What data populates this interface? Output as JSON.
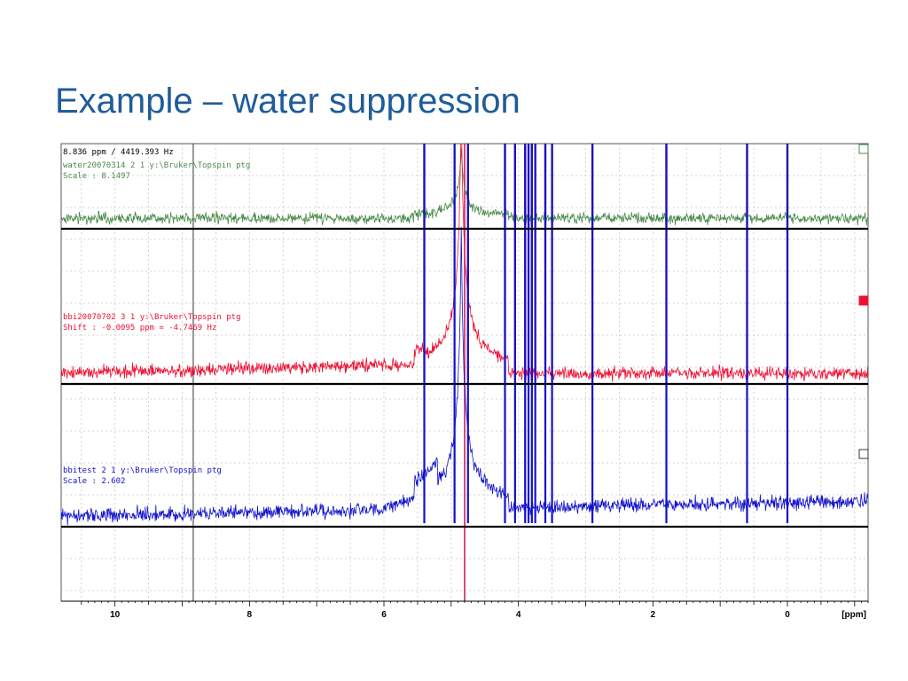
{
  "slide": {
    "title": "Example – water suppression"
  },
  "colors": {
    "title": "#1f5c99",
    "green": "#4a8a4a",
    "red": "#ee1133",
    "blue": "#1111cc",
    "grid": "#c8c8c8"
  },
  "chart_data": {
    "type": "line",
    "title": "",
    "xlabel": "[ppm]",
    "ylabel": "",
    "x_reversed": true,
    "xlim": [
      10.8,
      -1.2
    ],
    "ticks": [
      {
        "value": 10,
        "label": "10"
      },
      {
        "value": 8,
        "label": "8"
      },
      {
        "value": 6,
        "label": "6"
      },
      {
        "value": 4,
        "label": "4"
      },
      {
        "value": 2,
        "label": "2"
      },
      {
        "value": 0,
        "label": "0"
      }
    ],
    "grid": true,
    "cursor": {
      "ppm": 8.836,
      "readout": "8.836 ppm / 4419.393 Hz"
    },
    "water_line_ppm": 4.8,
    "series": [
      {
        "name": "water20070314  2  1  y:\\Bruker\\Topspin  ptg",
        "color": "#4a8a4a",
        "info": "Scale : 8.1497",
        "peaks_ppm": [
          5.4,
          4.95,
          4.2,
          4.05,
          3.9,
          3.85,
          3.8,
          3.75,
          3.6,
          3.5,
          2.9,
          1.8,
          0.6,
          0.0
        ]
      },
      {
        "name": "bbi20070702  3  1  y:\\Bruker\\Topspin  ptg",
        "color": "#ee1133",
        "info": "Shift : -0.0095 ppm = -4.7469 Hz",
        "peaks_ppm": [
          5.4,
          4.75,
          4.2,
          4.05,
          3.9,
          3.85,
          3.8,
          3.75,
          3.6,
          3.5,
          2.9,
          1.8,
          0.6,
          0.0
        ]
      },
      {
        "name": "bbitest  2  1  y:\\Bruker\\Topspin  ptg",
        "color": "#1111cc",
        "info": "Scale : 2.602",
        "peaks_ppm": [
          5.4,
          4.95,
          4.75,
          4.2,
          4.05,
          3.9,
          3.85,
          3.8,
          3.75,
          3.6,
          3.5,
          2.9,
          1.8,
          0.6,
          0.0
        ]
      }
    ]
  }
}
